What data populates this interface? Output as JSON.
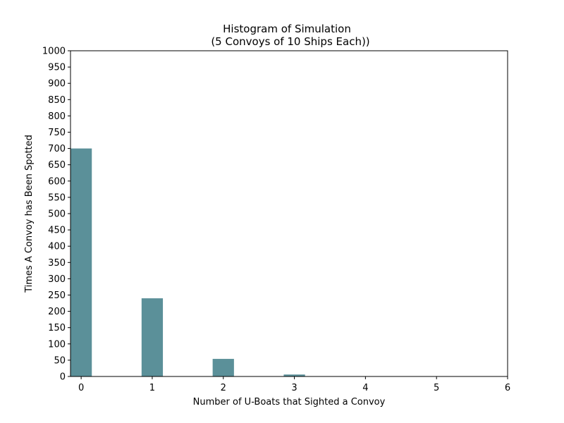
{
  "chart_data": {
    "type": "bar",
    "title_line1": "Histogram of Simulation",
    "title_line2": "(5 Convoys of 10 Ships Each))",
    "xlabel": "Number of U-Boats that Sighted a Convoy",
    "ylabel": "Times A Convoy has Been Spotted",
    "xlim": [
      -0.15,
      6
    ],
    "ylim": [
      0,
      1000
    ],
    "xticks": [
      0,
      1,
      2,
      3,
      4,
      5,
      6
    ],
    "yticks": [
      0,
      50,
      100,
      150,
      200,
      250,
      300,
      350,
      400,
      450,
      500,
      550,
      600,
      650,
      700,
      750,
      800,
      850,
      900,
      950,
      1000
    ],
    "bar_color": "#5b9099",
    "bar_width": 0.3,
    "bars": [
      {
        "x": 0,
        "value": 700
      },
      {
        "x": 1,
        "value": 240
      },
      {
        "x": 2,
        "value": 54
      },
      {
        "x": 3,
        "value": 6
      }
    ],
    "grid": false,
    "legend": "none"
  }
}
